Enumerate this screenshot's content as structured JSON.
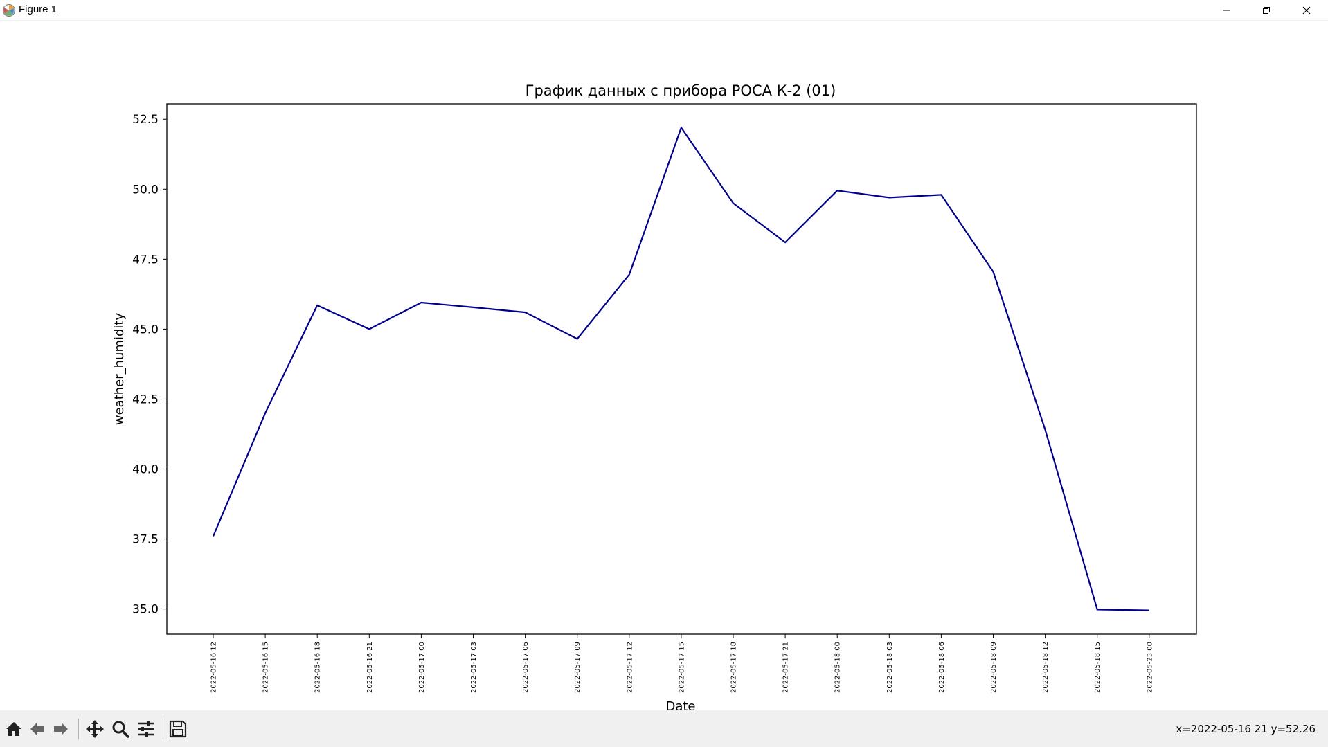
{
  "window": {
    "title": "Figure 1",
    "app_icon": "matplotlib-icon",
    "controls": [
      "minimize-icon",
      "maximize-icon",
      "close-icon"
    ]
  },
  "toolbar": {
    "buttons": [
      "home-icon",
      "back-icon",
      "forward-icon",
      "pan-icon",
      "zoom-icon",
      "configure-subplots-icon",
      "save-icon"
    ],
    "coords": "x=2022-05-16 21 y=52.26"
  },
  "chart_data": {
    "type": "line",
    "title": "График данных с прибора РОСА К-2 (01)",
    "xlabel": "Date",
    "ylabel": "weather_humidity",
    "categories": [
      "2022-05-16 12",
      "2022-05-16 15",
      "2022-05-16 18",
      "2022-05-16 21",
      "2022-05-17 00",
      "2022-05-17 03",
      "2022-05-17 06",
      "2022-05-17 09",
      "2022-05-17 12",
      "2022-05-17 15",
      "2022-05-17 18",
      "2022-05-17 21",
      "2022-05-18 00",
      "2022-05-18 03",
      "2022-05-18 06",
      "2022-05-18 09",
      "2022-05-18 12",
      "2022-05-18 15",
      "2022-05-23 00"
    ],
    "series": [
      {
        "values": [
          37.6,
          42.0,
          45.85,
          45.0,
          45.95,
          45.78,
          45.6,
          44.65,
          46.95,
          52.2,
          49.5,
          48.1,
          49.95,
          49.7,
          49.8,
          47.05,
          41.4,
          34.98,
          34.95
        ],
        "color": "#00008b"
      }
    ],
    "ylim": [
      34.1,
      53.05
    ],
    "yticks": [
      35.0,
      37.5,
      40.0,
      42.5,
      45.0,
      47.5,
      50.0,
      52.5
    ],
    "grid": false,
    "legend": "none"
  }
}
